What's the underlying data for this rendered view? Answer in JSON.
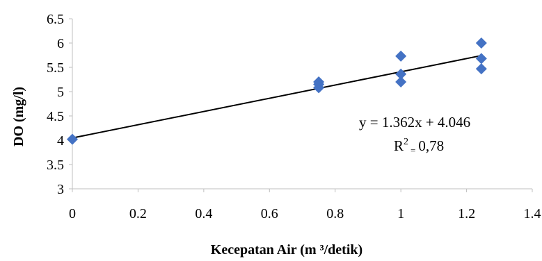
{
  "chart_data": {
    "type": "scatter",
    "title": "",
    "xlabel": "Kecepatan  Air (m ³/detik)",
    "ylabel": "DO (mg/l)",
    "xlim": [
      0,
      1.4
    ],
    "ylim": [
      3,
      6.5
    ],
    "x_ticks": [
      "0",
      "0.2",
      "0.4",
      "0.6",
      "0.8",
      "1",
      "1.2",
      "1.4"
    ],
    "y_ticks": [
      "3",
      "3.5",
      "4",
      "4.5",
      "5",
      "5.5",
      "6",
      "6.5"
    ],
    "grid": false,
    "marker": "diamond",
    "marker_color": "#4472C4",
    "series": [
      {
        "points": [
          {
            "x": 0,
            "y": 4.02
          },
          {
            "x": 0.75,
            "y": 5.2
          },
          {
            "x": 0.75,
            "y": 5.15
          },
          {
            "x": 0.75,
            "y": 5.08
          },
          {
            "x": 1.0,
            "y": 5.73
          },
          {
            "x": 1.0,
            "y": 5.36
          },
          {
            "x": 1.0,
            "y": 5.2
          },
          {
            "x": 1.245,
            "y": 6.0
          },
          {
            "x": 1.245,
            "y": 5.68
          },
          {
            "x": 1.245,
            "y": 5.47
          }
        ]
      }
    ],
    "trendline": {
      "slope": 1.362,
      "intercept": 4.046,
      "color": "#000000",
      "x_range": [
        0,
        1.245
      ]
    },
    "annotations": {
      "equation": "y = 1.362x + 4.046",
      "r2_prefix": "R",
      "r2_sup": "2",
      "r2_eq": "=",
      "r2_value": "0,78"
    }
  }
}
